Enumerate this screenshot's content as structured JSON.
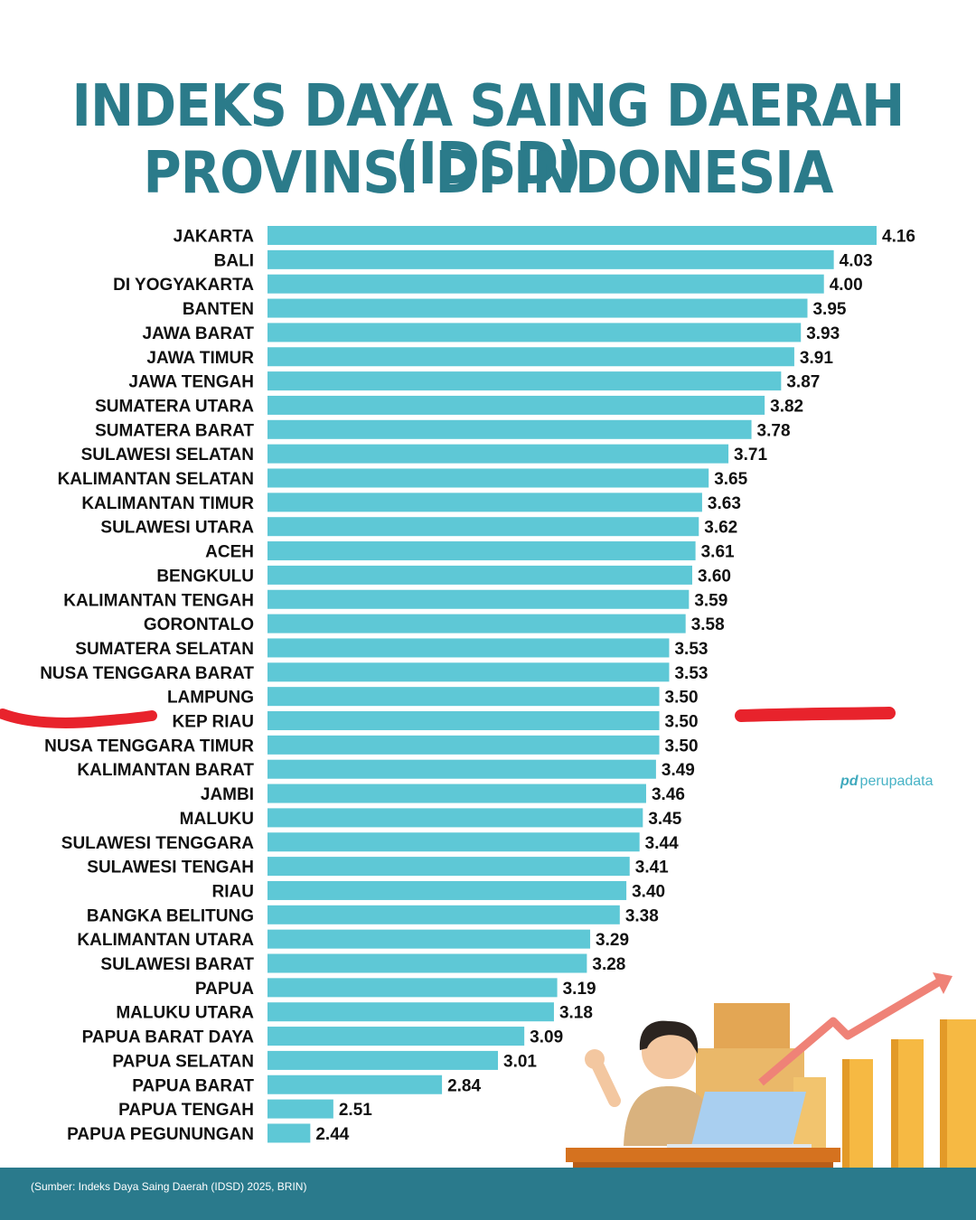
{
  "header": {
    "title_line1": "INDEKS DAYA SAING DAERAH (IDSD)",
    "title_line2": "PROVINSI DI INDONESIA"
  },
  "brand": {
    "mark": "pd",
    "name": "perupadata"
  },
  "footer": {
    "source": "(Sumber: Indeks Daya Saing Daerah (IDSD) 2025, BRIN)"
  },
  "colors": {
    "bar": "#5ec8d6",
    "title": "#2b7b8a",
    "footer": "#2a7a8c",
    "markup": "#e8232c"
  },
  "illustration": {
    "icon": "person-at-desk-with-rising-chart-illustration"
  },
  "chart_data": {
    "type": "bar",
    "orientation": "horizontal",
    "categories": [
      "JAKARTA",
      "BALI",
      "DI YOGYAKARTA",
      "BANTEN",
      "JAWA BARAT",
      "JAWA TIMUR",
      "JAWA TENGAH",
      "SUMATERA UTARA",
      "SUMATERA BARAT",
      "SULAWESI SELATAN",
      "KALIMANTAN SELATAN",
      "KALIMANTAN TIMUR",
      "SULAWESI UTARA",
      "ACEH",
      "BENGKULU",
      "KALIMANTAN TENGAH",
      "GORONTALO",
      "SUMATERA SELATAN",
      "NUSA TENGGARA BARAT",
      "LAMPUNG",
      "KEP RIAU",
      "NUSA TENGGARA TIMUR",
      "KALIMANTAN BARAT",
      "JAMBI",
      "MALUKU",
      "SULAWESI TENGGARA",
      "SULAWESI TENGAH",
      "RIAU",
      "BANGKA BELITUNG",
      "KALIMANTAN UTARA",
      "SULAWESI BARAT",
      "PAPUA",
      "MALUKU UTARA",
      "PAPUA BARAT DAYA",
      "PAPUA SELATAN",
      "PAPUA BARAT",
      "PAPUA TENGAH",
      "PAPUA PEGUNUNGAN"
    ],
    "values": [
      4.16,
      4.03,
      4.0,
      3.95,
      3.93,
      3.91,
      3.87,
      3.82,
      3.78,
      3.71,
      3.65,
      3.63,
      3.62,
      3.61,
      3.6,
      3.59,
      3.58,
      3.53,
      3.53,
      3.5,
      3.5,
      3.5,
      3.49,
      3.46,
      3.45,
      3.44,
      3.41,
      3.4,
      3.38,
      3.29,
      3.28,
      3.19,
      3.18,
      3.09,
      3.01,
      2.84,
      2.51,
      2.44
    ],
    "value_labels": [
      "4.16",
      "4.03",
      "4.00",
      "3.95",
      "3.93",
      "3.91",
      "3.87",
      "3.82",
      "3.78",
      "3.71",
      "3.65",
      "3.63",
      "3.62",
      "3.61",
      "3.60",
      "3.59",
      "3.58",
      "3.53",
      "3.53",
      "3.50",
      "3.50",
      "3.50",
      "3.49",
      "3.46",
      "3.45",
      "3.44",
      "3.41",
      "3.40",
      "3.38",
      "3.29",
      "3.28",
      "3.19",
      "3.18",
      "3.09",
      "3.01",
      "2.84",
      "2.51",
      "2.44"
    ],
    "xlim": [
      2.31,
      4.16
    ],
    "grid": false,
    "highlighted_category": "KEP RIAU"
  }
}
